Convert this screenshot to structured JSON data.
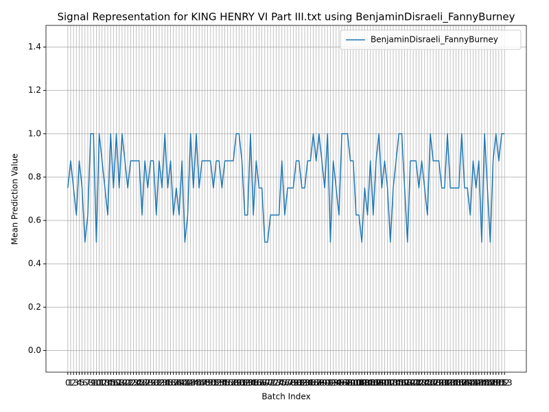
{
  "chart_data": {
    "type": "line",
    "title": "Signal Representation for KING HENRY VI Part III.txt using BenjaminDisraeli_FannyBurney",
    "x_label": "Batch Index",
    "y_label": "Mean Prediction Value",
    "x": [
      0,
      1,
      2,
      3,
      4,
      5,
      6,
      7,
      8,
      9,
      10,
      11,
      12,
      13,
      14,
      15,
      16,
      17,
      18,
      19,
      20,
      21,
      22,
      23,
      24,
      25,
      26,
      27,
      28,
      29,
      30,
      31,
      32,
      33,
      34,
      35,
      36,
      37,
      38,
      39,
      40,
      41,
      42,
      43,
      44,
      45,
      46,
      47,
      48,
      49,
      50,
      51,
      52,
      53,
      54,
      55,
      56,
      57,
      58,
      59,
      60,
      61,
      62,
      63,
      64,
      65,
      66,
      67,
      68,
      69,
      70,
      71,
      72,
      73,
      74,
      75,
      76,
      77,
      78,
      79,
      80,
      81,
      82,
      83,
      84,
      85,
      86,
      87,
      88,
      89,
      90,
      91,
      92,
      93,
      94,
      95,
      96,
      97,
      98,
      99,
      100,
      101,
      102,
      103,
      104,
      105,
      106,
      107,
      108,
      109,
      110,
      111,
      112,
      113,
      114,
      115,
      116,
      117,
      118,
      119,
      120,
      121,
      122,
      123,
      124,
      125,
      126,
      127,
      128,
      129,
      130,
      131,
      132,
      133,
      134,
      135,
      136,
      137,
      138,
      139,
      140,
      141,
      142,
      143,
      144,
      145,
      146,
      147,
      148,
      149,
      150,
      151,
      152,
      153
    ],
    "series": [
      {
        "name": "BenjaminDisraeli_FannyBurney",
        "color": "#1f77b4",
        "values": [
          0.75,
          0.875,
          0.75,
          0.625,
          0.875,
          0.75,
          0.5,
          0.625,
          1,
          1,
          0.5,
          1,
          0.875,
          0.75,
          0.625,
          1,
          0.75,
          1,
          0.75,
          1,
          0.875,
          0.75,
          0.875,
          0.875,
          0.875,
          0.875,
          0.625,
          0.875,
          0.75,
          0.875,
          0.875,
          0.625,
          0.875,
          0.75,
          1,
          0.75,
          0.875,
          0.625,
          0.75,
          0.625,
          0.875,
          0.5,
          0.625,
          1,
          0.75,
          1,
          0.75,
          0.875,
          0.875,
          0.875,
          0.875,
          0.75,
          0.875,
          0.875,
          0.75,
          0.875,
          0.875,
          0.875,
          0.875,
          1,
          1,
          0.875,
          0.625,
          0.625,
          1,
          0.625,
          0.875,
          0.75,
          0.75,
          0.5,
          0.5,
          0.625,
          0.625,
          0.625,
          0.625,
          0.875,
          0.625,
          0.75,
          0.75,
          0.75,
          0.875,
          0.875,
          0.75,
          0.75,
          0.875,
          0.875,
          1,
          0.875,
          1,
          0.875,
          0.75,
          1,
          0.5,
          0.875,
          0.75,
          0.625,
          1,
          1,
          1,
          0.875,
          0.875,
          0.625,
          0.625,
          0.5,
          0.75,
          0.625,
          0.875,
          0.625,
          0.875,
          1,
          0.75,
          0.875,
          0.75,
          0.5,
          0.75,
          0.875,
          1,
          1,
          0.75,
          0.5,
          0.875,
          0.875,
          0.875,
          0.75,
          0.875,
          0.75,
          0.625,
          1,
          0.875,
          0.875,
          0.875,
          0.75,
          0.75,
          1,
          0.75,
          0.75,
          0.75,
          0.75,
          1,
          0.75,
          0.75,
          0.625,
          0.875,
          0.75,
          0.875,
          0.5,
          1,
          0.75,
          0.5,
          0.875,
          1,
          0.875,
          1,
          1
        ]
      }
    ],
    "xlim": [
      -7.65,
      160.65
    ],
    "xticks": [
      0,
      1,
      2,
      3,
      4,
      5,
      6,
      7,
      8,
      9,
      10,
      11,
      12,
      13,
      14,
      15,
      16,
      17,
      18,
      19,
      20,
      21,
      22,
      23,
      24,
      25,
      26,
      27,
      28,
      29,
      30,
      31,
      32,
      33,
      34,
      35,
      36,
      37,
      38,
      39,
      40,
      41,
      42,
      43,
      44,
      45,
      46,
      47,
      48,
      49,
      50,
      51,
      52,
      53,
      54,
      55,
      56,
      57,
      58,
      59,
      60,
      61,
      62,
      63,
      64,
      65,
      66,
      67,
      68,
      69,
      70,
      71,
      72,
      73,
      74,
      75,
      76,
      77,
      78,
      79,
      80,
      81,
      82,
      83,
      84,
      85,
      86,
      87,
      88,
      89,
      90,
      91,
      92,
      93,
      94,
      95,
      96,
      97,
      98,
      99,
      100,
      101,
      102,
      103,
      104,
      105,
      106,
      107,
      108,
      109,
      110,
      111,
      112,
      113,
      114,
      115,
      116,
      117,
      118,
      119,
      120,
      121,
      122,
      123,
      124,
      125,
      126,
      127,
      128,
      129,
      130,
      131,
      132,
      133,
      134,
      135,
      136,
      137,
      138,
      139,
      140,
      141,
      142,
      143,
      144,
      145,
      146,
      147,
      148,
      149,
      150,
      151,
      152,
      153
    ],
    "ylim": [
      -0.1,
      1.5
    ],
    "yticks": [
      {
        "value": 0,
        "label": "0.0"
      },
      {
        "value": 0.2,
        "label": "0.2"
      },
      {
        "value": 0.4,
        "label": "0.4"
      },
      {
        "value": 0.6,
        "label": "0.6"
      },
      {
        "value": 0.8,
        "label": "0.8"
      },
      {
        "value": 1,
        "label": "1.0"
      },
      {
        "value": 1.2,
        "label": "1.2"
      },
      {
        "value": 1.4,
        "label": "1.4"
      }
    ],
    "grid": true,
    "legend": "upper right"
  }
}
